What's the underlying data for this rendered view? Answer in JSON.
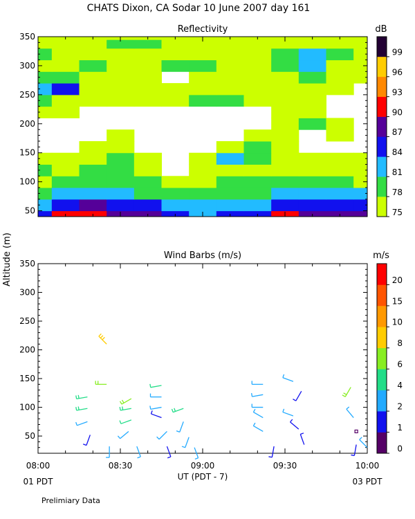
{
  "figure": {
    "title": "CHATS Dixon, CA  Sodar  10 June 2007  day 161",
    "ylabel": "Altitude (m)",
    "xlabel": "UT  (PDT - 7)",
    "x_left_note": "01 PDT",
    "x_right_note": "03 PDT",
    "footer_note": "Prelimiary Data"
  },
  "chart_data": [
    {
      "type": "heatmap",
      "title": "Reflectivity",
      "units": "dB",
      "x_ticks": [
        "08:00",
        "08:30",
        "09:00",
        "09:30",
        "10:00"
      ],
      "xlim": [
        0,
        120
      ],
      "ylim": [
        40,
        350
      ],
      "y_ticks": [
        50,
        100,
        150,
        200,
        250,
        300,
        350
      ],
      "colorbar": {
        "labels": [
          "75",
          "78",
          "81",
          "84",
          "87",
          "90",
          "93",
          "96",
          "99"
        ],
        "colors": [
          "#ccff00",
          "#33dd44",
          "#22bbff",
          "#1111ee",
          "#550099",
          "#ff0000",
          "#ff8800",
          "#ffcc00",
          "#220033"
        ]
      },
      "cols_minutes": [
        0,
        10,
        20,
        30,
        40,
        50,
        60,
        70,
        80,
        90,
        100,
        110,
        120
      ],
      "rows_altitude": [
        40,
        60,
        80,
        100,
        120,
        140,
        160,
        180,
        200,
        220,
        240,
        260,
        280,
        300,
        320,
        340,
        350
      ],
      "values": [
        [
          84,
          90,
          90,
          87,
          87,
          84,
          81,
          84,
          84,
          90,
          87,
          87,
          87
        ],
        [
          81,
          84,
          87,
          84,
          84,
          81,
          81,
          81,
          81,
          84,
          84,
          84,
          84
        ],
        [
          78,
          81,
          81,
          81,
          78,
          78,
          78,
          78,
          78,
          81,
          81,
          81,
          81
        ],
        [
          75,
          78,
          78,
          78,
          78,
          75,
          75,
          78,
          78,
          78,
          78,
          78,
          75
        ],
        [
          78,
          75,
          78,
          78,
          75,
          70,
          75,
          75,
          75,
          75,
          75,
          75,
          75
        ],
        [
          75,
          75,
          75,
          78,
          75,
          70,
          75,
          81,
          78,
          75,
          75,
          75,
          75
        ],
        [
          70,
          70,
          75,
          75,
          70,
          70,
          70,
          75,
          78,
          75,
          70,
          70,
          70
        ],
        [
          70,
          70,
          70,
          75,
          70,
          70,
          70,
          70,
          75,
          75,
          70,
          75,
          70
        ],
        [
          70,
          70,
          70,
          70,
          70,
          70,
          70,
          70,
          70,
          75,
          78,
          75,
          70
        ],
        [
          75,
          75,
          70,
          70,
          70,
          70,
          70,
          70,
          70,
          75,
          75,
          70,
          70
        ],
        [
          78,
          75,
          75,
          75,
          75,
          75,
          78,
          78,
          75,
          75,
          75,
          70,
          70
        ],
        [
          81,
          84,
          75,
          75,
          75,
          75,
          75,
          75,
          75,
          75,
          75,
          75,
          70
        ],
        [
          78,
          78,
          75,
          75,
          75,
          70,
          75,
          75,
          75,
          75,
          78,
          75,
          75
        ],
        [
          75,
          75,
          78,
          75,
          75,
          78,
          78,
          75,
          75,
          78,
          81,
          75,
          75
        ],
        [
          78,
          75,
          75,
          75,
          75,
          75,
          75,
          75,
          75,
          78,
          81,
          78,
          75
        ],
        [
          75,
          75,
          75,
          78,
          78,
          75,
          75,
          75,
          75,
          75,
          75,
          75,
          75
        ],
        [
          75,
          75,
          75,
          75,
          75,
          75,
          75,
          75,
          75,
          75,
          75,
          75,
          75
        ]
      ]
    },
    {
      "type": "scatter",
      "title": "Wind Barbs (m/s)",
      "units": "m/s",
      "x_ticks": [
        "08:00",
        "08:30",
        "09:00",
        "09:30",
        "10:00"
      ],
      "xlim": [
        0,
        120
      ],
      "ylim": [
        20,
        350
      ],
      "y_ticks": [
        50,
        100,
        150,
        200,
        250,
        300,
        350
      ],
      "colorbar": {
        "labels": [
          "0",
          "1",
          "2",
          "4",
          "6",
          "8",
          "10",
          "15",
          "20"
        ],
        "colors": [
          "#550066",
          "#1111ee",
          "#22aaff",
          "#22dd88",
          "#88ee22",
          "#ffcc00",
          "#ff9900",
          "#ff5500",
          "#ff0000"
        ]
      },
      "barbs": [
        {
          "x": 25,
          "y": 210,
          "dir": 315,
          "speed": 8
        },
        {
          "x": 25,
          "y": 140,
          "dir": 270,
          "speed": 7
        },
        {
          "x": 18,
          "y": 118,
          "dir": 260,
          "speed": 5
        },
        {
          "x": 18,
          "y": 98,
          "dir": 260,
          "speed": 5
        },
        {
          "x": 18,
          "y": 75,
          "dir": 250,
          "speed": 3
        },
        {
          "x": 19,
          "y": 52,
          "dir": 200,
          "speed": 1
        },
        {
          "x": 26,
          "y": 32,
          "dir": 180,
          "speed": 2
        },
        {
          "x": 34,
          "y": 115,
          "dir": 240,
          "speed": 6
        },
        {
          "x": 34,
          "y": 98,
          "dir": 260,
          "speed": 5
        },
        {
          "x": 34,
          "y": 78,
          "dir": 250,
          "speed": 4
        },
        {
          "x": 33,
          "y": 58,
          "dir": 230,
          "speed": 3
        },
        {
          "x": 36,
          "y": 32,
          "dir": 160,
          "speed": 2
        },
        {
          "x": 45,
          "y": 138,
          "dir": 260,
          "speed": 4
        },
        {
          "x": 45,
          "y": 118,
          "dir": 270,
          "speed": 3
        },
        {
          "x": 45,
          "y": 100,
          "dir": 260,
          "speed": 3
        },
        {
          "x": 45,
          "y": 82,
          "dir": 290,
          "speed": 1
        },
        {
          "x": 47,
          "y": 58,
          "dir": 225,
          "speed": 3
        },
        {
          "x": 47,
          "y": 32,
          "dir": 160,
          "speed": 1
        },
        {
          "x": 53,
          "y": 98,
          "dir": 250,
          "speed": 5
        },
        {
          "x": 53,
          "y": 75,
          "dir": 200,
          "speed": 3
        },
        {
          "x": 55,
          "y": 48,
          "dir": 200,
          "speed": 3
        },
        {
          "x": 57,
          "y": 30,
          "dir": 160,
          "speed": 2
        },
        {
          "x": 82,
          "y": 140,
          "dir": 270,
          "speed": 2
        },
        {
          "x": 82,
          "y": 122,
          "dir": 260,
          "speed": 2
        },
        {
          "x": 82,
          "y": 100,
          "dir": 270,
          "speed": 2
        },
        {
          "x": 82,
          "y": 82,
          "dir": 300,
          "speed": 2
        },
        {
          "x": 82,
          "y": 58,
          "dir": 300,
          "speed": 2
        },
        {
          "x": 86,
          "y": 32,
          "dir": 190,
          "speed": 1
        },
        {
          "x": 93,
          "y": 145,
          "dir": 290,
          "speed": 2
        },
        {
          "x": 96,
          "y": 128,
          "dir": 210,
          "speed": 1
        },
        {
          "x": 93,
          "y": 85,
          "dir": 290,
          "speed": 2
        },
        {
          "x": 95,
          "y": 62,
          "dir": 310,
          "speed": 1
        },
        {
          "x": 97,
          "y": 35,
          "dir": 340,
          "speed": 1
        },
        {
          "x": 114,
          "y": 135,
          "dir": 210,
          "speed": 6
        },
        {
          "x": 115,
          "y": 82,
          "dir": 320,
          "speed": 2
        },
        {
          "x": 116,
          "y": 58,
          "dir": 0,
          "speed": 0
        },
        {
          "x": 116,
          "y": 35,
          "dir": 190,
          "speed": 1
        },
        {
          "x": 120,
          "y": 30,
          "dir": 315,
          "speed": 2
        }
      ]
    }
  ]
}
